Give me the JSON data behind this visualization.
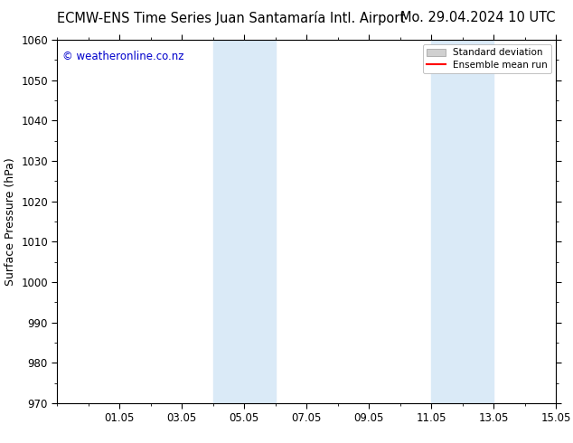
{
  "title_left": "ECMW-ENS Time Series Juan Santamaría Intl. Airport",
  "title_right": "Mo. 29.04.2024 10 UTC",
  "ylabel": "Surface Pressure (hPa)",
  "watermark": "© weatheronline.co.nz",
  "watermark_color": "#0000cc",
  "ylim": [
    970,
    1060
  ],
  "yticks": [
    970,
    980,
    990,
    1000,
    1010,
    1020,
    1030,
    1040,
    1050,
    1060
  ],
  "xlim": [
    0,
    16
  ],
  "xtick_labels": [
    "01.05",
    "03.05",
    "05.05",
    "07.05",
    "09.05",
    "11.05",
    "13.05",
    "15.05"
  ],
  "xtick_positions": [
    2,
    4,
    6,
    8,
    10,
    12,
    14,
    16
  ],
  "shade_bands": [
    {
      "x_start": 5.0,
      "x_end": 7.0
    },
    {
      "x_start": 12.0,
      "x_end": 14.0
    }
  ],
  "shade_color": "#daeaf7",
  "legend_std_label": "Standard deviation",
  "legend_mean_label": "Ensemble mean run",
  "legend_std_color": "#d0d0d0",
  "legend_mean_color": "#ff0000",
  "bg_color": "#ffffff",
  "title_fontsize": 10.5,
  "axis_label_fontsize": 9,
  "tick_fontsize": 8.5,
  "watermark_fontsize": 8.5
}
